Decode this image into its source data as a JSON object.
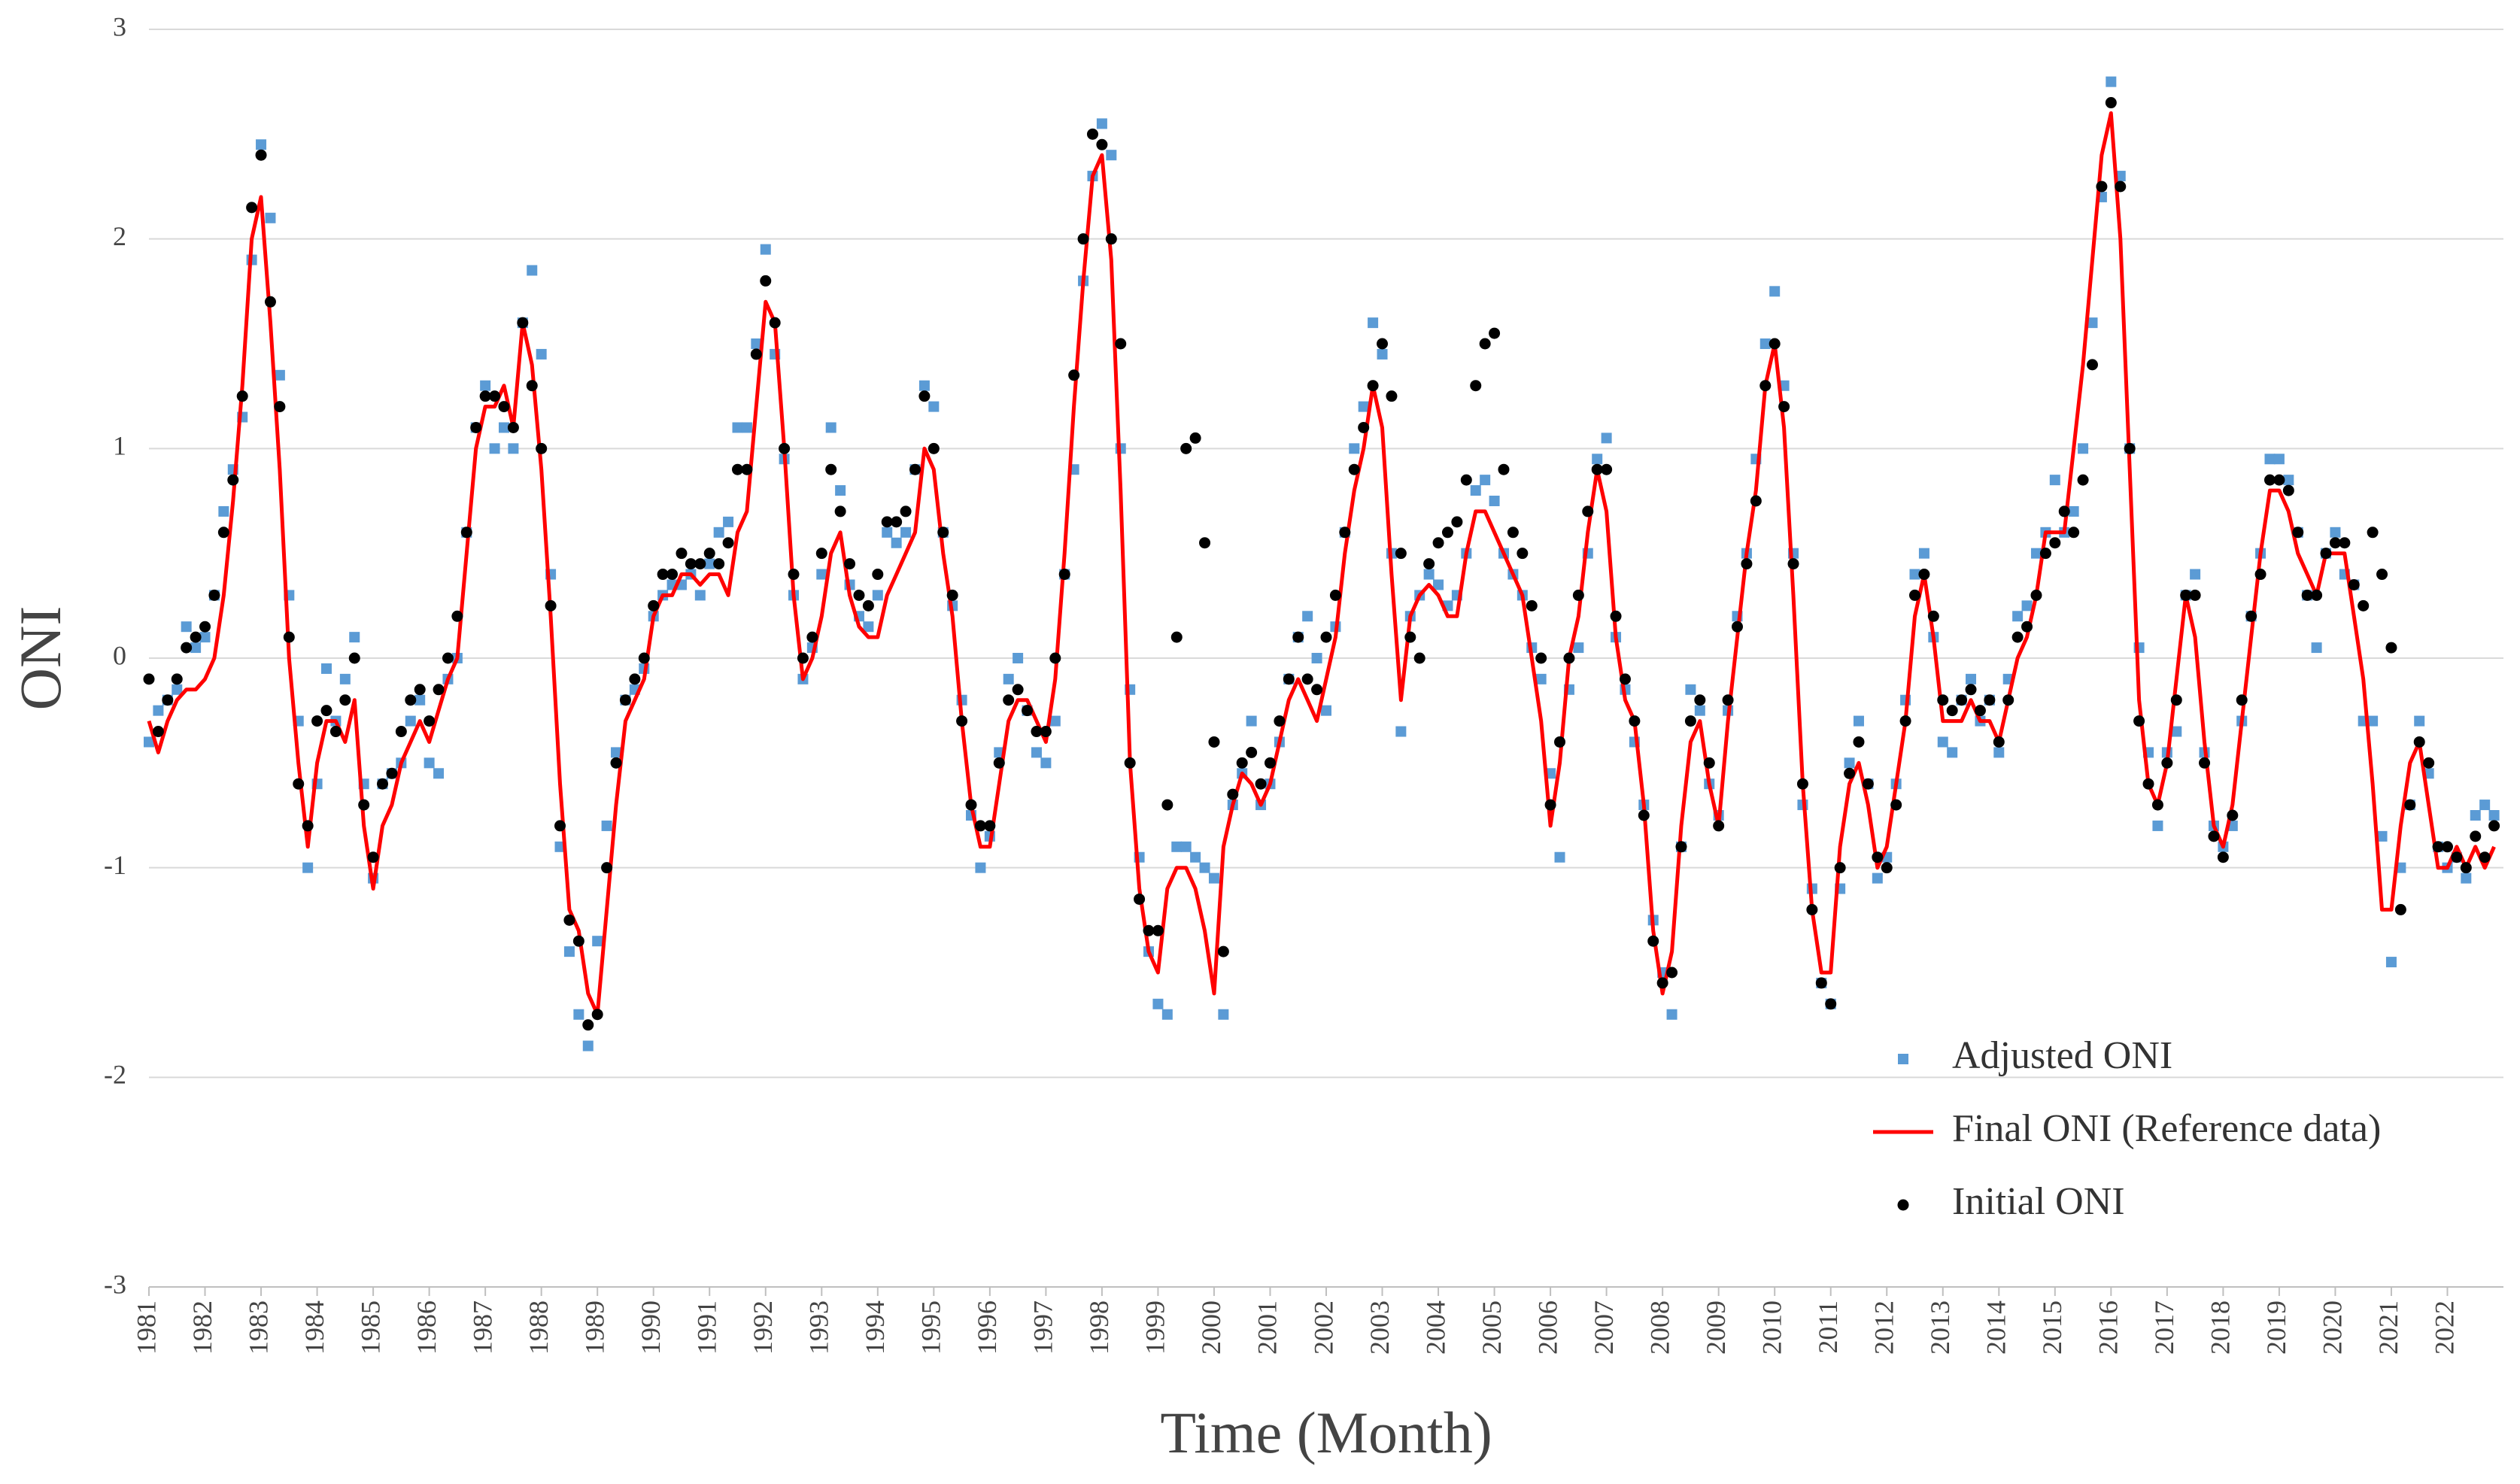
{
  "chart_data": {
    "type": "line",
    "x_label": "Time (Month)",
    "y_label": "ONI",
    "categories": [
      "1981",
      null,
      null,
      null,
      null,
      null,
      "1982",
      null,
      null,
      null,
      null,
      null,
      "1983",
      null,
      null,
      null,
      null,
      null,
      "1984",
      null,
      null,
      null,
      null,
      null,
      "1985",
      null,
      null,
      null,
      null,
      null,
      "1986",
      null,
      null,
      null,
      null,
      null,
      "1987",
      null,
      null,
      null,
      null,
      null,
      "1988",
      null,
      null,
      null,
      null,
      null,
      "1989",
      null,
      null,
      null,
      null,
      null,
      "1990",
      null,
      null,
      null,
      null,
      null,
      "1991",
      null,
      null,
      null,
      null,
      null,
      "1992",
      null,
      null,
      null,
      null,
      null,
      "1993",
      null,
      null,
      null,
      null,
      null,
      "1994",
      null,
      null,
      null,
      null,
      null,
      "1995",
      null,
      null,
      null,
      null,
      null,
      "1996",
      null,
      null,
      null,
      null,
      null,
      "1997",
      null,
      null,
      null,
      null,
      null,
      "1998",
      null,
      null,
      null,
      null,
      null,
      "1999",
      null,
      null,
      null,
      null,
      null,
      "2000",
      null,
      null,
      null,
      null,
      null,
      "2001",
      null,
      null,
      null,
      null,
      null,
      "2002",
      null,
      null,
      null,
      null,
      null,
      "2003",
      null,
      null,
      null,
      null,
      null,
      "2004",
      null,
      null,
      null,
      null,
      null,
      "2005",
      null,
      null,
      null,
      null,
      null,
      "2006",
      null,
      null,
      null,
      null,
      null,
      "2007",
      null,
      null,
      null,
      null,
      null,
      "2008",
      null,
      null,
      null,
      null,
      null,
      "2009",
      null,
      null,
      null,
      null,
      null,
      "2010",
      null,
      null,
      null,
      null,
      null,
      "2011",
      null,
      null,
      null,
      null,
      null,
      "2012",
      null,
      null,
      null,
      null,
      null,
      "2013",
      null,
      null,
      null,
      null,
      null,
      "2014",
      null,
      null,
      null,
      null,
      null,
      "2015",
      null,
      null,
      null,
      null,
      null,
      "2016",
      null,
      null,
      null,
      null,
      null,
      "2017",
      null,
      null,
      null,
      null,
      null,
      "2018",
      null,
      null,
      null,
      null,
      null,
      "2019",
      null,
      null,
      null,
      null,
      null,
      "2020",
      null,
      null,
      null,
      null,
      null,
      "2021",
      null,
      null,
      null,
      null,
      null,
      "2022",
      null,
      null,
      null,
      null,
      null
    ],
    "series": [
      {
        "name": "Adjusted ONI",
        "color": "#5b9bd5",
        "mode": "square",
        "values": [
          -0.4,
          -0.25,
          -0.2,
          -0.15,
          0.15,
          0.05,
          0.1,
          0.3,
          0.7,
          0.9,
          1.15,
          1.9,
          2.45,
          2.1,
          1.35,
          0.3,
          -0.3,
          -1.0,
          -0.6,
          -0.05,
          -0.3,
          -0.1,
          0.1,
          -0.6,
          -1.05,
          -0.6,
          -0.55,
          -0.5,
          -0.3,
          -0.2,
          -0.5,
          -0.55,
          -0.1,
          0.0,
          0.6,
          1.1,
          1.3,
          1.0,
          1.1,
          1.0,
          1.6,
          1.85,
          1.45,
          0.4,
          -0.9,
          -1.4,
          -1.7,
          -1.85,
          -1.35,
          -0.8,
          -0.45,
          -0.2,
          -0.15,
          -0.05,
          0.2,
          0.3,
          0.35,
          0.35,
          0.4,
          0.3,
          0.45,
          0.6,
          0.65,
          1.1,
          1.1,
          1.5,
          1.95,
          1.45,
          0.95,
          0.3,
          -0.1,
          0.05,
          0.4,
          1.1,
          0.8,
          0.35,
          0.2,
          0.15,
          0.3,
          0.6,
          0.55,
          0.6,
          0.9,
          1.3,
          1.2,
          0.6,
          0.25,
          -0.2,
          -0.75,
          -1.0,
          -0.85,
          -0.45,
          -0.1,
          0.0,
          -0.25,
          -0.45,
          -0.5,
          -0.3,
          0.4,
          0.9,
          1.8,
          2.3,
          2.55,
          2.4,
          1.0,
          -0.15,
          -0.95,
          -1.4,
          -1.65,
          -1.7,
          -0.9,
          -0.9,
          -0.95,
          -1.0,
          -1.05,
          -1.7,
          -0.7,
          -0.55,
          -0.3,
          -0.7,
          -0.6,
          -0.4,
          -0.1,
          0.1,
          0.2,
          0.0,
          -0.25,
          0.15,
          0.6,
          1.0,
          1.2,
          1.6,
          1.45,
          0.5,
          -0.35,
          0.2,
          0.3,
          0.4,
          0.35,
          0.25,
          0.3,
          0.5,
          0.8,
          0.85,
          0.75,
          0.5,
          0.4,
          0.3,
          0.05,
          -0.1,
          -0.55,
          -0.95,
          -0.15,
          0.05,
          0.5,
          0.95,
          1.05,
          0.1,
          -0.15,
          -0.4,
          -0.7,
          -1.25,
          -1.5,
          -1.7,
          -0.9,
          -0.15,
          -0.25,
          -0.6,
          -0.75,
          -0.25,
          0.2,
          0.5,
          0.95,
          1.5,
          1.75,
          1.3,
          0.5,
          -0.7,
          -1.1,
          -1.55,
          -1.65,
          -1.1,
          -0.5,
          -0.3,
          -0.6,
          -1.05,
          -0.95,
          -0.6,
          -0.2,
          0.4,
          0.5,
          0.1,
          -0.4,
          -0.45,
          -0.2,
          -0.1,
          -0.3,
          -0.2,
          -0.45,
          -0.1,
          0.2,
          0.25,
          0.5,
          0.6,
          0.85,
          0.6,
          0.7,
          1.0,
          1.6,
          2.2,
          2.75,
          2.3,
          1.0,
          0.05,
          -0.45,
          -0.8,
          -0.45,
          -0.35,
          0.3,
          0.4,
          -0.45,
          -0.8,
          -0.9,
          -0.8,
          -0.3,
          0.2,
          0.5,
          0.95,
          0.95,
          0.85,
          0.6,
          0.3,
          0.05,
          0.5,
          0.6,
          0.4,
          0.35,
          -0.3,
          -0.3,
          -0.85,
          -1.45,
          -1.0,
          -0.7,
          -0.3,
          -0.55,
          -0.9,
          -1.0,
          -0.95,
          -1.05,
          -0.75,
          -0.7,
          -0.75
        ]
      },
      {
        "name": "Final ONI (Reference data)",
        "color": "#ff0000",
        "mode": "line",
        "values": [
          -0.3,
          -0.45,
          -0.3,
          -0.2,
          -0.15,
          -0.15,
          -0.1,
          0.0,
          0.3,
          0.75,
          1.3,
          2.0,
          2.2,
          1.6,
          0.9,
          0.0,
          -0.5,
          -0.9,
          -0.5,
          -0.3,
          -0.3,
          -0.4,
          -0.2,
          -0.8,
          -1.1,
          -0.8,
          -0.7,
          -0.5,
          -0.4,
          -0.3,
          -0.4,
          -0.25,
          -0.1,
          0.0,
          0.5,
          1.0,
          1.2,
          1.2,
          1.3,
          1.1,
          1.6,
          1.4,
          0.9,
          0.2,
          -0.6,
          -1.2,
          -1.3,
          -1.6,
          -1.7,
          -1.2,
          -0.7,
          -0.3,
          -0.2,
          -0.1,
          0.2,
          0.3,
          0.3,
          0.4,
          0.4,
          0.35,
          0.4,
          0.4,
          0.3,
          0.6,
          0.7,
          1.2,
          1.7,
          1.6,
          1.0,
          0.3,
          -0.1,
          0.0,
          0.2,
          0.5,
          0.6,
          0.3,
          0.15,
          0.1,
          0.1,
          0.3,
          0.4,
          0.5,
          0.6,
          1.0,
          0.9,
          0.5,
          0.2,
          -0.3,
          -0.7,
          -0.9,
          -0.9,
          -0.6,
          -0.3,
          -0.2,
          -0.2,
          -0.3,
          -0.4,
          -0.1,
          0.5,
          1.2,
          1.8,
          2.3,
          2.4,
          1.9,
          0.8,
          -0.5,
          -1.1,
          -1.4,
          -1.5,
          -1.1,
          -1.0,
          -1.0,
          -1.1,
          -1.3,
          -1.6,
          -0.9,
          -0.7,
          -0.55,
          -0.6,
          -0.7,
          -0.6,
          -0.4,
          -0.2,
          -0.1,
          -0.2,
          -0.3,
          -0.1,
          0.1,
          0.5,
          0.8,
          1.0,
          1.3,
          1.1,
          0.4,
          -0.2,
          0.2,
          0.3,
          0.35,
          0.3,
          0.2,
          0.2,
          0.5,
          0.7,
          0.7,
          0.6,
          0.5,
          0.4,
          0.3,
          0.0,
          -0.3,
          -0.8,
          -0.5,
          0.0,
          0.2,
          0.6,
          0.9,
          0.7,
          0.1,
          -0.2,
          -0.3,
          -0.7,
          -1.3,
          -1.6,
          -1.4,
          -0.8,
          -0.4,
          -0.3,
          -0.6,
          -0.8,
          -0.3,
          0.1,
          0.5,
          0.8,
          1.3,
          1.5,
          1.1,
          0.3,
          -0.6,
          -1.2,
          -1.5,
          -1.5,
          -0.9,
          -0.6,
          -0.5,
          -0.7,
          -1.0,
          -0.9,
          -0.6,
          -0.3,
          0.2,
          0.4,
          0.1,
          -0.3,
          -0.3,
          -0.3,
          -0.2,
          -0.3,
          -0.3,
          -0.4,
          -0.2,
          0.0,
          0.1,
          0.3,
          0.6,
          0.6,
          0.6,
          1.0,
          1.4,
          1.9,
          2.4,
          2.6,
          2.0,
          0.9,
          -0.2,
          -0.6,
          -0.7,
          -0.5,
          -0.1,
          0.3,
          0.1,
          -0.4,
          -0.8,
          -0.9,
          -0.7,
          -0.3,
          0.1,
          0.5,
          0.8,
          0.8,
          0.7,
          0.5,
          0.4,
          0.3,
          0.5,
          0.5,
          0.5,
          0.2,
          -0.1,
          -0.6,
          -1.2,
          -1.2,
          -0.8,
          -0.5,
          -0.4,
          -0.7,
          -1.0,
          -1.0,
          -0.9,
          -1.0,
          -0.9,
          -1.0,
          -0.9
        ]
      },
      {
        "name": "Initial ONI",
        "color": "#000000",
        "mode": "dot",
        "values": [
          -0.1,
          -0.35,
          -0.2,
          -0.1,
          0.05,
          0.1,
          0.15,
          0.3,
          0.6,
          0.85,
          1.25,
          2.15,
          2.4,
          1.7,
          1.2,
          0.1,
          -0.6,
          -0.8,
          -0.3,
          -0.25,
          -0.35,
          -0.2,
          0.0,
          -0.7,
          -0.95,
          -0.6,
          -0.55,
          -0.35,
          -0.2,
          -0.15,
          -0.3,
          -0.15,
          0.0,
          0.2,
          0.6,
          1.1,
          1.25,
          1.25,
          1.2,
          1.1,
          1.6,
          1.3,
          1.0,
          0.25,
          -0.8,
          -1.25,
          -1.35,
          -1.75,
          -1.7,
          -1.0,
          -0.5,
          -0.2,
          -0.1,
          0.0,
          0.25,
          0.4,
          0.4,
          0.5,
          0.45,
          0.45,
          0.5,
          0.45,
          0.55,
          0.9,
          0.9,
          1.45,
          1.8,
          1.6,
          1.0,
          0.4,
          0.0,
          0.1,
          0.5,
          0.9,
          0.7,
          0.45,
          0.3,
          0.25,
          0.4,
          0.65,
          0.65,
          0.7,
          0.9,
          1.25,
          1.0,
          0.6,
          0.3,
          -0.3,
          -0.7,
          -0.8,
          -0.8,
          -0.5,
          -0.2,
          -0.15,
          -0.25,
          -0.35,
          -0.35,
          0.0,
          0.4,
          1.35,
          2.0,
          2.5,
          2.45,
          2.0,
          1.5,
          -0.5,
          -1.15,
          -1.3,
          -1.3,
          -0.7,
          0.1,
          1.0,
          1.05,
          0.55,
          -0.4,
          -1.4,
          -0.65,
          -0.5,
          -0.45,
          -0.6,
          -0.5,
          -0.3,
          -0.1,
          0.1,
          -0.1,
          -0.15,
          0.1,
          0.3,
          0.6,
          0.9,
          1.1,
          1.3,
          1.5,
          1.25,
          0.5,
          0.1,
          0.0,
          0.45,
          0.55,
          0.6,
          0.65,
          0.85,
          1.3,
          1.5,
          1.55,
          0.9,
          0.6,
          0.5,
          0.25,
          0.0,
          -0.7,
          -0.4,
          0.0,
          0.3,
          0.7,
          0.9,
          0.9,
          0.2,
          -0.1,
          -0.3,
          -0.75,
          -1.35,
          -1.55,
          -1.5,
          -0.9,
          -0.3,
          -0.2,
          -0.5,
          -0.8,
          -0.2,
          0.15,
          0.45,
          0.75,
          1.3,
          1.5,
          1.2,
          0.45,
          -0.6,
          -1.2,
          -1.55,
          -1.65,
          -1.0,
          -0.55,
          -0.4,
          -0.6,
          -0.95,
          -1.0,
          -0.7,
          -0.3,
          0.3,
          0.4,
          0.2,
          -0.2,
          -0.25,
          -0.2,
          -0.15,
          -0.25,
          -0.2,
          -0.4,
          -0.2,
          0.1,
          0.15,
          0.3,
          0.5,
          0.55,
          0.7,
          0.6,
          0.85,
          1.4,
          2.25,
          2.65,
          2.25,
          1.0,
          -0.3,
          -0.6,
          -0.7,
          -0.5,
          -0.2,
          0.3,
          0.3,
          -0.5,
          -0.85,
          -0.95,
          -0.75,
          -0.2,
          0.2,
          0.4,
          0.85,
          0.85,
          0.8,
          0.6,
          0.3,
          0.3,
          0.5,
          0.55,
          0.55,
          0.35,
          0.25,
          0.6,
          0.4,
          0.05,
          -1.2,
          -0.7,
          -0.4,
          -0.5,
          -0.9,
          -0.9,
          -0.95,
          -1.0,
          -0.85,
          -0.95,
          -0.8
        ]
      }
    ],
    "ylim": [
      -3,
      3
    ],
    "yticks": [
      -3,
      -2,
      -1,
      0,
      1,
      2,
      3
    ],
    "grid": true
  }
}
